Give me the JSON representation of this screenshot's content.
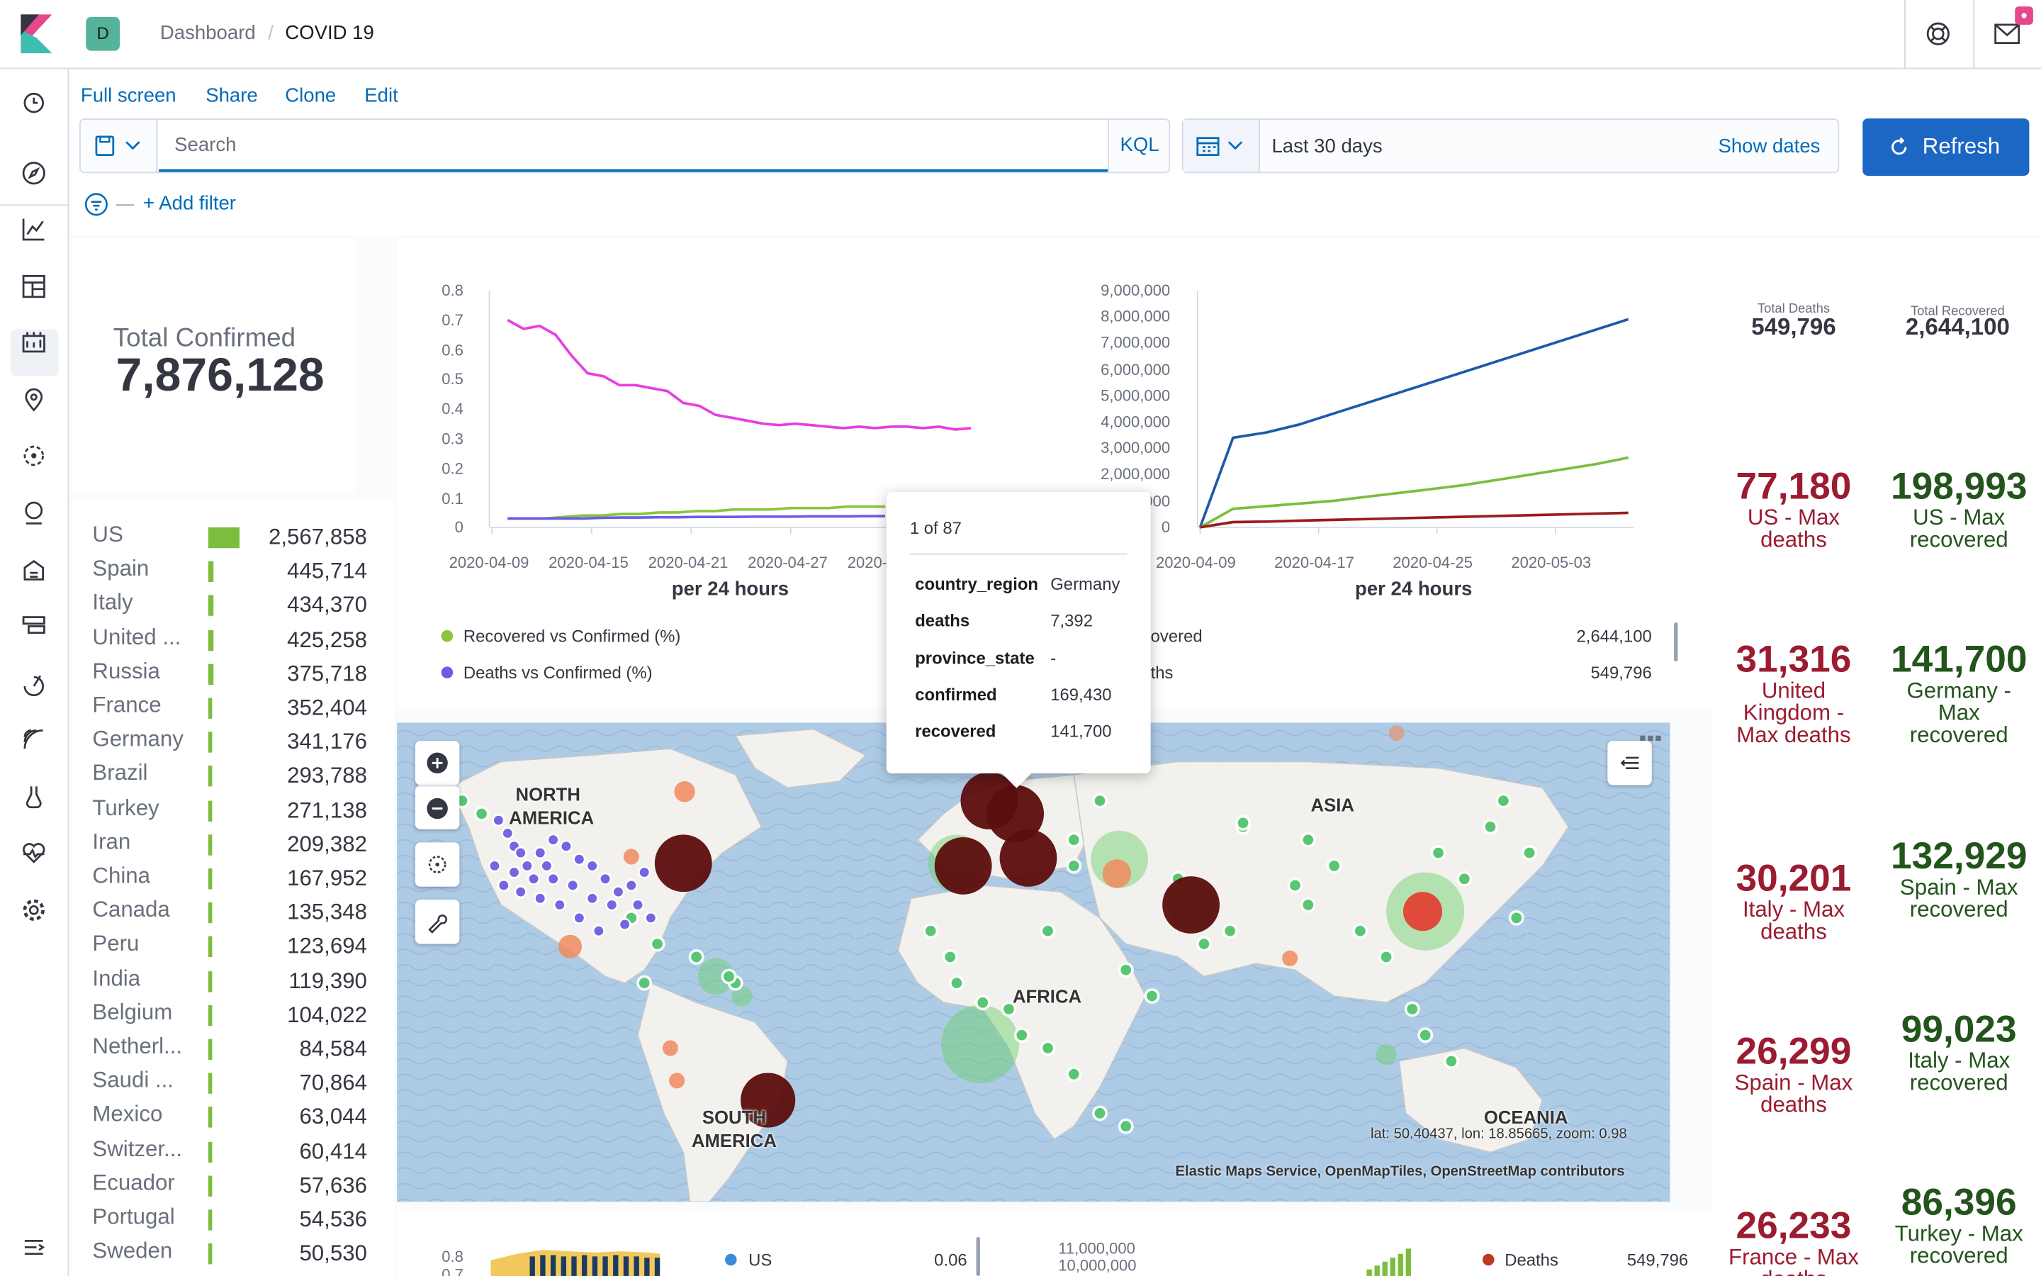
{
  "header": {
    "space_initial": "D",
    "breadcrumb_parent": "Dashboard",
    "breadcrumb_sep": "/",
    "breadcrumb_current": "COVID 19"
  },
  "sidebar": {
    "items": [
      "clock-icon",
      "compass-icon",
      "visualize-icon",
      "dashboard-icon",
      "canvas-icon",
      "maps-icon",
      "ml-icon",
      "metrics-icon",
      "logs-icon",
      "apm-icon",
      "uptime-icon",
      "siem-icon",
      "devtools-icon",
      "monitoring-icon",
      "management-icon"
    ]
  },
  "top_links": {
    "full_screen": "Full screen",
    "share": "Share",
    "clone": "Clone",
    "edit": "Edit"
  },
  "query": {
    "placeholder": "Search",
    "language": "KQL",
    "time_range": "Last 30 days",
    "show_dates": "Show dates",
    "refresh": "Refresh",
    "add_filter": "+ Add filter"
  },
  "total_confirmed": {
    "label": "Total Confirmed",
    "value": "7,876,128"
  },
  "country_list": [
    {
      "name": "US",
      "value": "2,567,858",
      "fraction": 1.0
    },
    {
      "name": "Spain",
      "value": "445,714",
      "fraction": 0.17
    },
    {
      "name": "Italy",
      "value": "434,370",
      "fraction": 0.17
    },
    {
      "name": "United ...",
      "value": "425,258",
      "fraction": 0.17
    },
    {
      "name": "Russia",
      "value": "375,718",
      "fraction": 0.15
    },
    {
      "name": "France",
      "value": "352,404",
      "fraction": 0.14
    },
    {
      "name": "Germany",
      "value": "341,176",
      "fraction": 0.13
    },
    {
      "name": "Brazil",
      "value": "293,788",
      "fraction": 0.11
    },
    {
      "name": "Turkey",
      "value": "271,138",
      "fraction": 0.11
    },
    {
      "name": "Iran",
      "value": "209,382",
      "fraction": 0.08
    },
    {
      "name": "China",
      "value": "167,952",
      "fraction": 0.07
    },
    {
      "name": "Canada",
      "value": "135,348",
      "fraction": 0.05
    },
    {
      "name": "Peru",
      "value": "123,694",
      "fraction": 0.05
    },
    {
      "name": "India",
      "value": "119,390",
      "fraction": 0.05
    },
    {
      "name": "Belgium",
      "value": "104,022",
      "fraction": 0.04
    },
    {
      "name": "Netherl...",
      "value": "84,584",
      "fraction": 0.03
    },
    {
      "name": "Saudi ...",
      "value": "70,864",
      "fraction": 0.03
    },
    {
      "name": "Mexico",
      "value": "63,044",
      "fraction": 0.02
    },
    {
      "name": "Switzer...",
      "value": "60,414",
      "fraction": 0.02
    },
    {
      "name": "Ecuador",
      "value": "57,636",
      "fraction": 0.02
    },
    {
      "name": "Portugal",
      "value": "54,536",
      "fraction": 0.02
    },
    {
      "name": "Sweden",
      "value": "50,530",
      "fraction": 0.02
    }
  ],
  "chart_data": [
    {
      "type": "line",
      "x_ticks": [
        "2020-04-09",
        "2020-04-15",
        "2020-04-21",
        "2020-04-27",
        "2020-"
      ],
      "y_ticks": [
        "0.8",
        "0.7",
        "0.6",
        "0.5",
        "0.4",
        "0.3",
        "0.2",
        "0.1",
        "0"
      ],
      "ylim": [
        0,
        0.8
      ],
      "xlabel": "per 24 hours",
      "series": [
        {
          "name": "Recovered vs Confirmed (%)",
          "color": "#8ac53a",
          "values": [
            0.03,
            0.03,
            0.03,
            0.035,
            0.04,
            0.04,
            0.045,
            0.045,
            0.05,
            0.05,
            0.055,
            0.055,
            0.06,
            0.06,
            0.06,
            0.065,
            0.065,
            0.065,
            0.07,
            0.07,
            0.07
          ]
        },
        {
          "name": "Deaths vs Confirmed (%)",
          "color": "#6b5ce7",
          "values": [
            0.03,
            0.03,
            0.03,
            0.03,
            0.03,
            0.032,
            0.033,
            0.033,
            0.034,
            0.034,
            0.035,
            0.035,
            0.035,
            0.036,
            0.036,
            0.036,
            0.037,
            0.037,
            0.037,
            0.038,
            0.038
          ]
        },
        {
          "name": "",
          "color": "#e83ee0",
          "values": [
            0.7,
            0.67,
            0.68,
            0.65,
            0.58,
            0.52,
            0.51,
            0.48,
            0.48,
            0.47,
            0.46,
            0.42,
            0.41,
            0.38,
            0.37,
            0.36,
            0.35,
            0.345,
            0.35,
            0.345,
            0.34,
            0.335,
            0.34,
            0.335,
            0.34,
            0.34,
            0.335,
            0.34,
            0.33,
            0.335
          ]
        }
      ]
    },
    {
      "type": "line",
      "x_ticks": [
        "2020-04-09",
        "2020-04-17",
        "2020-04-25",
        "2020-05-03"
      ],
      "y_ticks": [
        "9,000,000",
        "8,000,000",
        "7,000,000",
        "6,000,000",
        "5,000,000",
        "4,000,000",
        "3,000,000",
        "2,000,000",
        "1,000,000",
        "0"
      ],
      "ylim": [
        0,
        9000000
      ],
      "xlabel": "per 24 hours",
      "series": [
        {
          "name": "Confirmed",
          "color": "#1e5aa8",
          "values": [
            0,
            3400000,
            3600000,
            3900000,
            4300000,
            4700000,
            5100000,
            5500000,
            5900000,
            6300000,
            6700000,
            7100000,
            7500000,
            7900000
          ]
        },
        {
          "name": "Recovered",
          "color": "#7cbd3e",
          "values": [
            0,
            700000,
            800000,
            900000,
            1000000,
            1150000,
            1300000,
            1450000,
            1600000,
            1800000,
            2000000,
            2200000,
            2400000,
            2644100
          ]
        },
        {
          "name": "Deaths",
          "color": "#9b1c1c",
          "values": [
            0,
            200000,
            220000,
            250000,
            280000,
            310000,
            340000,
            370000,
            400000,
            430000,
            460000,
            490000,
            520000,
            549796
          ]
        }
      ],
      "legend": [
        {
          "label": "overed",
          "value": "2,644,100"
        },
        {
          "label": "ths",
          "value": "549,796"
        }
      ]
    }
  ],
  "metrics": {
    "total_deaths_label": "Total Deaths",
    "total_deaths": "549,796",
    "total_recovered_label": "Total Recovered",
    "total_recovered": "2,644,100",
    "deaths": [
      {
        "value": "77,180",
        "label": "US - Max deaths"
      },
      {
        "value": "31,316",
        "label": "United Kingdom - Max deaths"
      },
      {
        "value": "30,201",
        "label": "Italy - Max deaths"
      },
      {
        "value": "26,299",
        "label": "Spain - Max deaths"
      },
      {
        "value": "26,233",
        "label": "France - Max deaths"
      }
    ],
    "recovered": [
      {
        "value": "198,993",
        "label": "US - Max recovered"
      },
      {
        "value": "141,700",
        "label": "Germany - Max recovered"
      },
      {
        "value": "132,929",
        "label": "Spain - Max recovered"
      },
      {
        "value": "99,023",
        "label": "Italy - Max recovered"
      },
      {
        "value": "86,396",
        "label": "Turkey - Max recovered"
      }
    ]
  },
  "map": {
    "labels": {
      "north_america": "NORTH AMERICA",
      "south_america": "SOUTH AMERICA",
      "africa": "AFRICA",
      "asia": "ASIA",
      "oceania": "OCEANIA"
    },
    "coords": "lat: 50.40437, lon: 18.85665, zoom: 0.98",
    "attribution": "Elastic Maps Service, OpenMapTiles, OpenStreetMap contributors"
  },
  "tooltip": {
    "page": "1 of 87",
    "rows": [
      {
        "key": "country_region",
        "value": "Germany"
      },
      {
        "key": "deaths",
        "value": "7,392"
      },
      {
        "key": "province_state",
        "value": "-"
      },
      {
        "key": "confirmed",
        "value": "169,430"
      },
      {
        "key": "recovered",
        "value": "141,700"
      }
    ]
  },
  "bottom": {
    "left_ticks": [
      "0.8",
      "0.7"
    ],
    "legend_us": "US",
    "legend_us_value": "0.06",
    "right_ticks": [
      "11,000,000",
      "10,000,000"
    ],
    "legend_deaths": "Deaths",
    "legend_deaths_value": "549,796"
  }
}
